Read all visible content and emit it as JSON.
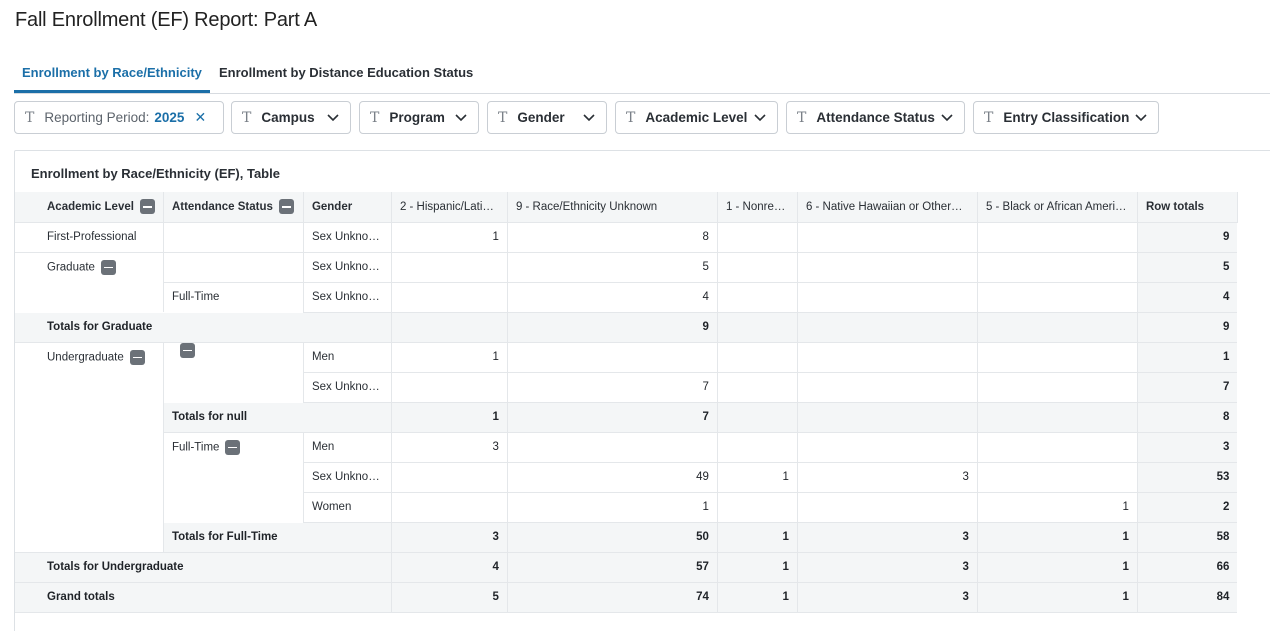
{
  "page": {
    "title": "Fall Enrollment (EF) Report: Part A"
  },
  "tabs": [
    {
      "label": "Enrollment by Race/Ethnicity",
      "active": true
    },
    {
      "label": "Enrollment by Distance Education Status",
      "active": false
    }
  ],
  "filters": {
    "reporting_period": {
      "label": "Reporting Period:",
      "value": "2025"
    },
    "items": [
      "Campus",
      "Program",
      "Gender",
      "Academic Level",
      "Attendance Status",
      "Entry Classification"
    ]
  },
  "icons": {
    "filter_type": "text-type-icon",
    "remove": "close-icon",
    "expand": "chevron-down-icon",
    "collapse": "collapse-minus-icon"
  },
  "table": {
    "title": "Enrollment by Race/Ethnicity (EF), Table",
    "headers": {
      "academic_level": "Academic Level",
      "attendance_status": "Attendance Status",
      "gender": "Gender",
      "measures": [
        "2 - Hispanic/Lati…",
        "9 - Race/Ethnicity Unknown",
        "1 - Nonre…",
        "6 - Native Hawaiian or Other…",
        "5 - Black or African Ameri…"
      ],
      "row_totals": "Row totals"
    },
    "rows": [
      {
        "level": "First-Professional",
        "att": "",
        "gender": "Sex Unkno…",
        "v": [
          "1",
          "8",
          "",
          "",
          ""
        ],
        "total": "9"
      },
      {
        "level": "Graduate",
        "att": "",
        "gender": "Sex Unkno…",
        "v": [
          "",
          "5",
          "",
          "",
          ""
        ],
        "total": "5"
      },
      {
        "level": "",
        "att": "Full-Time",
        "gender": "Sex Unkno…",
        "v": [
          "",
          "4",
          "",
          "",
          ""
        ],
        "total": "4"
      },
      {
        "subtotal": "Totals for Graduate",
        "v": [
          "",
          "9",
          "",
          "",
          ""
        ],
        "total": "9"
      },
      {
        "level": "Undergraduate",
        "att": "",
        "gender": "Men",
        "v": [
          "1",
          "",
          "",
          "",
          ""
        ],
        "total": "1"
      },
      {
        "level": "",
        "att": "",
        "gender": "Sex Unkno…",
        "v": [
          "",
          "7",
          "",
          "",
          ""
        ],
        "total": "7"
      },
      {
        "subtotal": "Totals for null",
        "v": [
          "1",
          "7",
          "",
          "",
          ""
        ],
        "total": "8"
      },
      {
        "level": "",
        "att": "Full-Time",
        "gender": "Men",
        "v": [
          "3",
          "",
          "",
          "",
          ""
        ],
        "total": "3"
      },
      {
        "level": "",
        "att": "",
        "gender": "Sex Unkno…",
        "v": [
          "",
          "49",
          "1",
          "3",
          ""
        ],
        "total": "53"
      },
      {
        "level": "",
        "att": "",
        "gender": "Women",
        "v": [
          "",
          "1",
          "",
          "",
          "1"
        ],
        "total": "2"
      },
      {
        "subtotal": "Totals for Full-Time",
        "v": [
          "3",
          "50",
          "1",
          "3",
          "1"
        ],
        "total": "58"
      },
      {
        "grand": "Totals for Undergraduate",
        "v": [
          "4",
          "57",
          "1",
          "3",
          "1"
        ],
        "total": "66"
      },
      {
        "grand": "Grand totals",
        "v": [
          "5",
          "74",
          "1",
          "3",
          "1"
        ],
        "total": "84"
      }
    ]
  },
  "colors": {
    "accent": "#1b6fa8",
    "header_bg": "#f4f6f7",
    "border": "#e4e7ea"
  }
}
